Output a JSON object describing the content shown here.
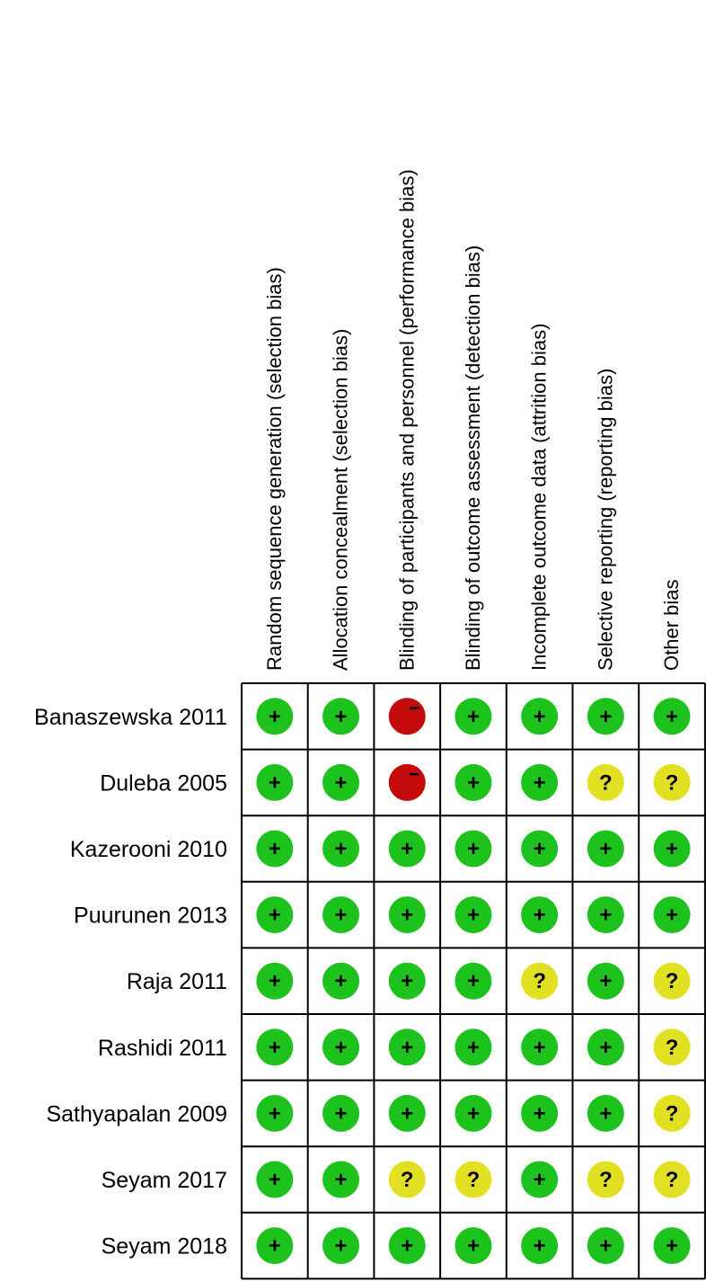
{
  "chart_data": {
    "type": "table",
    "columns": [
      "Random sequence generation (selection bias)",
      "Allocation concealment (selection bias)",
      "Blinding of participants and personnel (performance bias)",
      "Blinding of outcome assessment (detection bias)",
      "Incomplete outcome data (attrition bias)",
      "Selective reporting (reporting bias)",
      "Other bias"
    ],
    "rows": [
      {
        "study": "Banaszewska 2011",
        "ratings": [
          "low",
          "low",
          "high",
          "low",
          "low",
          "low",
          "low"
        ]
      },
      {
        "study": "Duleba 2005",
        "ratings": [
          "low",
          "low",
          "high",
          "low",
          "low",
          "unclear",
          "unclear"
        ]
      },
      {
        "study": "Kazerooni 2010",
        "ratings": [
          "low",
          "low",
          "low",
          "low",
          "low",
          "low",
          "low"
        ]
      },
      {
        "study": "Puurunen 2013",
        "ratings": [
          "low",
          "low",
          "low",
          "low",
          "low",
          "low",
          "low"
        ]
      },
      {
        "study": "Raja 2011",
        "ratings": [
          "low",
          "low",
          "low",
          "low",
          "unclear",
          "low",
          "unclear"
        ]
      },
      {
        "study": "Rashidi 2011",
        "ratings": [
          "low",
          "low",
          "low",
          "low",
          "low",
          "low",
          "unclear"
        ]
      },
      {
        "study": "Sathyapalan 2009",
        "ratings": [
          "low",
          "low",
          "low",
          "low",
          "low",
          "low",
          "unclear"
        ]
      },
      {
        "study": "Seyam 2017",
        "ratings": [
          "low",
          "low",
          "unclear",
          "unclear",
          "low",
          "unclear",
          "unclear"
        ]
      },
      {
        "study": "Seyam 2018",
        "ratings": [
          "low",
          "low",
          "low",
          "low",
          "low",
          "low",
          "low"
        ]
      }
    ],
    "symbols": {
      "low": {
        "glyph": "+",
        "color": "#1dc21d"
      },
      "unclear": {
        "glyph": "?",
        "color": "#e2e022"
      },
      "high": {
        "glyph": "−",
        "color": "#c40b0b"
      }
    }
  }
}
